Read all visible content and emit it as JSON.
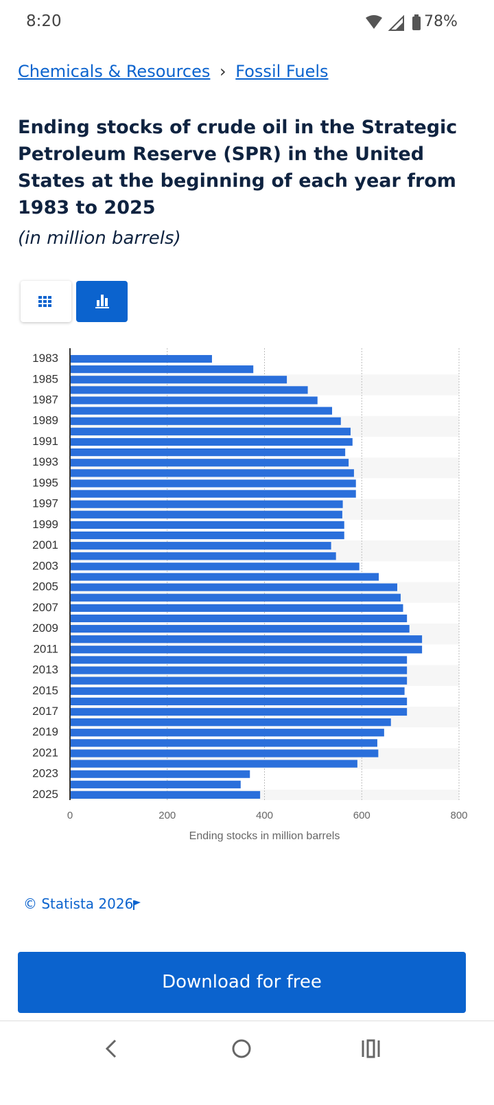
{
  "status_bar": {
    "time": "8:20",
    "battery": "78%"
  },
  "breadcrumbs": {
    "items": [
      "Chemicals & Resources",
      "Fossil Fuels"
    ],
    "separator": "›"
  },
  "header": {
    "title": "Ending stocks of crude oil in the Strategic Petroleum Reserve (SPR) in the United States at the beginning of each year from 1983 to 2025",
    "subtitle": "(in million barrels)"
  },
  "chart_data": {
    "type": "bar",
    "orientation": "horizontal",
    "color": "#2a6fdb",
    "grid": true,
    "x_label": "Ending stocks in million barrels",
    "categories": [
      "1983",
      null,
      "1985",
      null,
      "1987",
      null,
      "1989",
      null,
      "1991",
      null,
      "1993",
      null,
      "1995",
      null,
      "1997",
      null,
      "1999",
      null,
      "2001",
      null,
      "2003",
      null,
      "2005",
      null,
      "2007",
      null,
      "2009",
      null,
      "2011",
      null,
      "2013",
      null,
      "2015",
      null,
      "2017",
      null,
      "2019",
      null,
      "2021",
      null,
      "2023",
      null,
      "2025"
    ],
    "values": [
      292,
      377,
      446,
      489,
      509,
      539,
      557,
      577,
      581,
      566,
      573,
      584,
      588,
      588,
      561,
      560,
      564,
      564,
      537,
      547,
      595,
      635,
      673,
      680,
      685,
      693,
      698,
      724,
      724,
      693,
      693,
      693,
      688,
      693,
      693,
      660,
      646,
      632,
      634,
      591,
      370,
      351,
      391
    ],
    "xlim": [
      0,
      800
    ],
    "xticks": [
      0,
      200,
      400,
      600,
      800
    ]
  },
  "footer": {
    "credit": "© Statista 2026",
    "button": "Download for free"
  }
}
